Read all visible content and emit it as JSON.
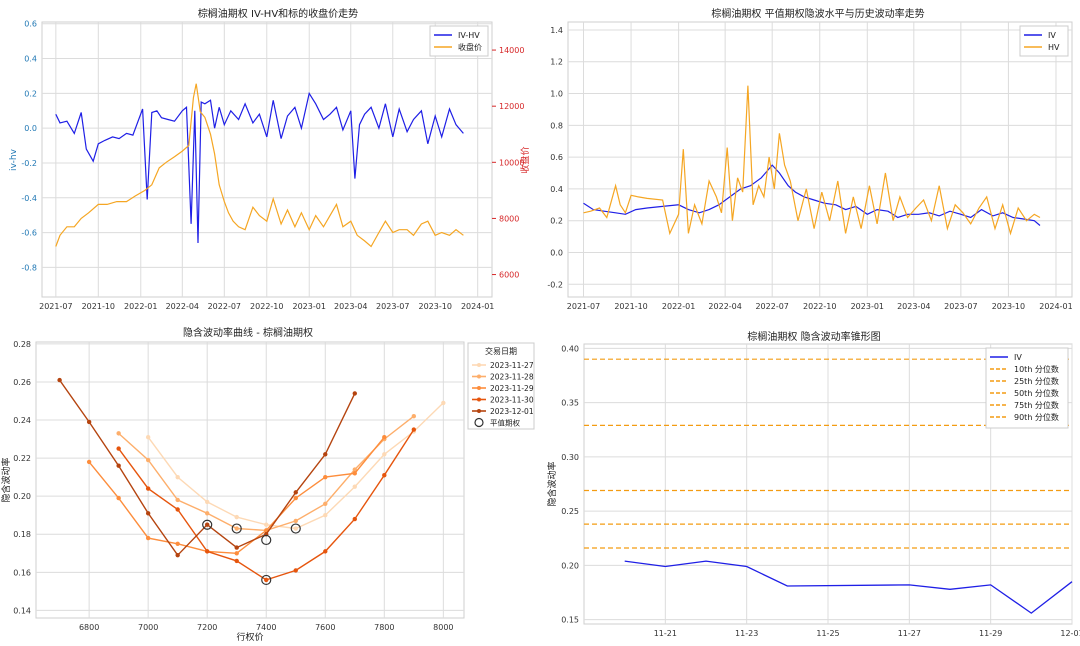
{
  "colors": {
    "iv_blue": "#1f1fe6",
    "hv_orange": "#f5a623",
    "close_orange": "#f5a623",
    "right_axis_red": "#d62728",
    "left_axis_blue": "#1f77b4",
    "quantile_orange": "#f39c12",
    "grid": "#d9d9d9",
    "smile_palette": [
      "#fdd9b5",
      "#fdae6b",
      "#fd8d3c",
      "#e6550d",
      "#b5440f"
    ]
  },
  "chart_data": [
    {
      "type": "line",
      "title": "棕榈油期权 IV-HV和标的收盘价走势",
      "ylabel": "iv-hv",
      "y2label": "收盘价",
      "ylim": [
        -0.97,
        0.61
      ],
      "y2lim": [
        5200,
        15000
      ],
      "xlim": [
        "2021-06-01",
        "2024-02-01"
      ],
      "yticks": [
        -0.8,
        -0.6,
        -0.4,
        -0.2,
        0.0,
        0.2,
        0.4,
        0.6
      ],
      "ytick_labels": [
        "-0.8",
        "-0.6",
        "-0.4",
        "-0.2",
        "0.0",
        "0.2",
        "0.4",
        "0.6"
      ],
      "y2ticks": [
        6000,
        8000,
        10000,
        12000,
        14000
      ],
      "y2tick_labels": [
        "6000",
        "8000",
        "10000",
        "12000",
        "14000"
      ],
      "xticks": [
        "2021-07-01",
        "2021-10-01",
        "2022-01-01",
        "2022-04-01",
        "2022-07-01",
        "2022-10-01",
        "2023-01-01",
        "2023-04-01",
        "2023-07-01",
        "2023-10-01",
        "2024-01-01"
      ],
      "xtick_labels": [
        "2021-07",
        "2021-10",
        "2022-01",
        "2022-04",
        "2022-07",
        "2022-10",
        "2023-01",
        "2023-04",
        "2023-07",
        "2023-10",
        "2024-01"
      ],
      "grid": true,
      "legend_position": "top-right",
      "series": [
        {
          "name": "IV-HV",
          "axis": "left",
          "color": "#1f1fe6",
          "x": [
            "2021-07-01",
            "2021-07-10",
            "2021-07-25",
            "2021-08-10",
            "2021-08-25",
            "2021-09-05",
            "2021-09-20",
            "2021-10-01",
            "2021-10-15",
            "2021-11-01",
            "2021-11-15",
            "2021-12-01",
            "2021-12-15",
            "2022-01-05",
            "2022-01-15",
            "2022-01-25",
            "2022-02-05",
            "2022-02-15",
            "2022-03-01",
            "2022-03-15",
            "2022-04-01",
            "2022-04-10",
            "2022-04-20",
            "2022-04-28",
            "2022-05-05",
            "2022-05-12",
            "2022-05-20",
            "2022-06-01",
            "2022-06-10",
            "2022-06-20",
            "2022-07-01",
            "2022-07-15",
            "2022-08-01",
            "2022-08-15",
            "2022-09-01",
            "2022-09-15",
            "2022-10-01",
            "2022-10-15",
            "2022-11-01",
            "2022-11-15",
            "2022-12-01",
            "2022-12-15",
            "2023-01-01",
            "2023-01-15",
            "2023-02-01",
            "2023-02-15",
            "2023-03-01",
            "2023-03-15",
            "2023-04-01",
            "2023-04-10",
            "2023-04-20",
            "2023-05-01",
            "2023-05-15",
            "2023-06-01",
            "2023-06-15",
            "2023-07-01",
            "2023-07-15",
            "2023-08-01",
            "2023-08-15",
            "2023-09-01",
            "2023-09-15",
            "2023-10-01",
            "2023-10-15",
            "2023-11-01",
            "2023-11-15",
            "2023-12-01"
          ],
          "y": [
            0.08,
            0.03,
            0.04,
            -0.03,
            0.09,
            -0.12,
            -0.19,
            -0.09,
            -0.07,
            -0.05,
            -0.06,
            -0.03,
            -0.04,
            0.11,
            -0.41,
            0.09,
            0.1,
            0.06,
            0.05,
            0.04,
            0.1,
            0.12,
            -0.55,
            0.1,
            -0.66,
            0.15,
            0.14,
            0.16,
            0.0,
            0.12,
            0.02,
            0.1,
            0.05,
            0.14,
            0.03,
            0.08,
            -0.05,
            0.16,
            -0.06,
            0.07,
            0.12,
            0.0,
            0.2,
            0.14,
            0.05,
            0.08,
            0.12,
            -0.01,
            0.1,
            -0.29,
            0.02,
            0.08,
            0.12,
            0.0,
            0.14,
            -0.05,
            0.11,
            -0.02,
            0.05,
            0.1,
            -0.09,
            0.07,
            -0.05,
            0.11,
            0.02,
            -0.03
          ]
        },
        {
          "name": "收盘价",
          "axis": "right",
          "color": "#f5a623",
          "x": [
            "2021-07-01",
            "2021-07-10",
            "2021-07-25",
            "2021-08-10",
            "2021-08-25",
            "2021-09-10",
            "2021-10-01",
            "2021-10-20",
            "2021-11-10",
            "2021-12-01",
            "2021-12-20",
            "2022-01-10",
            "2022-01-25",
            "2022-02-10",
            "2022-02-25",
            "2022-03-15",
            "2022-04-01",
            "2022-04-15",
            "2022-04-25",
            "2022-05-01",
            "2022-05-10",
            "2022-05-20",
            "2022-06-01",
            "2022-06-10",
            "2022-06-20",
            "2022-07-01",
            "2022-07-10",
            "2022-07-20",
            "2022-08-01",
            "2022-08-15",
            "2022-09-01",
            "2022-09-15",
            "2022-10-01",
            "2022-10-15",
            "2022-11-01",
            "2022-11-15",
            "2022-12-01",
            "2022-12-15",
            "2023-01-01",
            "2023-01-15",
            "2023-02-01",
            "2023-02-15",
            "2023-03-01",
            "2023-03-15",
            "2023-04-01",
            "2023-04-15",
            "2023-05-01",
            "2023-05-15",
            "2023-06-01",
            "2023-06-15",
            "2023-07-01",
            "2023-07-15",
            "2023-08-01",
            "2023-08-15",
            "2023-09-01",
            "2023-09-15",
            "2023-10-01",
            "2023-10-15",
            "2023-11-01",
            "2023-11-15",
            "2023-12-01"
          ],
          "y": [
            7000,
            7400,
            7700,
            7700,
            8000,
            8200,
            8500,
            8500,
            8600,
            8600,
            8800,
            9000,
            9200,
            9800,
            10000,
            10200,
            10400,
            10600,
            12300,
            12800,
            11800,
            11600,
            11000,
            10300,
            9200,
            8600,
            8200,
            7900,
            7700,
            7600,
            8400,
            8100,
            7900,
            8700,
            7800,
            8300,
            7700,
            8200,
            7600,
            8100,
            7700,
            8100,
            8500,
            7700,
            7900,
            7400,
            7200,
            7000,
            7500,
            7900,
            7500,
            7600,
            7600,
            7400,
            7800,
            7900,
            7400,
            7500,
            7400,
            7600,
            7400
          ]
        }
      ]
    },
    {
      "type": "line",
      "title": "棕榈油期权 平值期权隐波水平与历史波动率走势",
      "ylim": [
        -0.28,
        1.45
      ],
      "xlim": [
        "2021-06-01",
        "2024-02-01"
      ],
      "yticks": [
        -0.2,
        0.0,
        0.2,
        0.4,
        0.6,
        0.8,
        1.0,
        1.2,
        1.4
      ],
      "ytick_labels": [
        "-0.2",
        "0.0",
        "0.2",
        "0.4",
        "0.6",
        "0.8",
        "1.0",
        "1.2",
        "1.4"
      ],
      "xticks": [
        "2021-07-01",
        "2021-10-01",
        "2022-01-01",
        "2022-04-01",
        "2022-07-01",
        "2022-10-01",
        "2023-01-01",
        "2023-04-01",
        "2023-07-01",
        "2023-10-01",
        "2024-01-01"
      ],
      "xtick_labels": [
        "2021-07",
        "2021-10",
        "2022-01",
        "2022-04",
        "2022-07",
        "2022-10",
        "2023-01",
        "2023-04",
        "2023-07",
        "2023-10",
        "2024-01"
      ],
      "grid": true,
      "legend_position": "top-right",
      "series": [
        {
          "name": "IV",
          "color": "#1f1fe6",
          "x": [
            "2021-07-01",
            "2021-07-20",
            "2021-08-10",
            "2021-09-01",
            "2021-09-20",
            "2021-10-10",
            "2021-11-01",
            "2021-12-01",
            "2022-01-01",
            "2022-01-20",
            "2022-02-10",
            "2022-03-01",
            "2022-03-20",
            "2022-04-10",
            "2022-05-01",
            "2022-05-20",
            "2022-06-10",
            "2022-07-01",
            "2022-07-15",
            "2022-08-01",
            "2022-08-15",
            "2022-09-01",
            "2022-09-20",
            "2022-10-10",
            "2022-11-01",
            "2022-11-20",
            "2022-12-10",
            "2023-01-01",
            "2023-01-20",
            "2023-02-10",
            "2023-03-01",
            "2023-03-20",
            "2023-04-10",
            "2023-05-01",
            "2023-05-20",
            "2023-06-10",
            "2023-07-01",
            "2023-07-20",
            "2023-08-10",
            "2023-09-01",
            "2023-09-20",
            "2023-10-10",
            "2023-11-01",
            "2023-11-20",
            "2023-12-01"
          ],
          "y": [
            0.31,
            0.27,
            0.26,
            0.25,
            0.24,
            0.27,
            0.28,
            0.29,
            0.3,
            0.27,
            0.25,
            0.27,
            0.3,
            0.35,
            0.4,
            0.42,
            0.47,
            0.55,
            0.5,
            0.42,
            0.38,
            0.35,
            0.33,
            0.31,
            0.3,
            0.27,
            0.29,
            0.24,
            0.27,
            0.26,
            0.22,
            0.24,
            0.24,
            0.25,
            0.23,
            0.26,
            0.24,
            0.22,
            0.27,
            0.23,
            0.25,
            0.22,
            0.21,
            0.2,
            0.17
          ]
        },
        {
          "name": "HV",
          "color": "#f5a623",
          "x": [
            "2021-07-01",
            "2021-07-15",
            "2021-08-01",
            "2021-08-15",
            "2021-09-01",
            "2021-09-10",
            "2021-09-20",
            "2021-10-01",
            "2021-10-15",
            "2021-11-01",
            "2021-12-01",
            "2021-12-15",
            "2022-01-01",
            "2022-01-10",
            "2022-01-20",
            "2022-02-01",
            "2022-02-15",
            "2022-03-01",
            "2022-03-15",
            "2022-03-25",
            "2022-04-05",
            "2022-04-15",
            "2022-04-25",
            "2022-05-05",
            "2022-05-15",
            "2022-05-25",
            "2022-06-05",
            "2022-06-15",
            "2022-06-25",
            "2022-07-05",
            "2022-07-15",
            "2022-07-25",
            "2022-08-05",
            "2022-08-20",
            "2022-09-05",
            "2022-09-20",
            "2022-10-05",
            "2022-10-20",
            "2022-11-05",
            "2022-11-20",
            "2022-12-05",
            "2022-12-20",
            "2023-01-05",
            "2023-01-20",
            "2023-02-05",
            "2023-02-20",
            "2023-03-05",
            "2023-03-20",
            "2023-04-05",
            "2023-04-20",
            "2023-05-05",
            "2023-05-20",
            "2023-06-05",
            "2023-06-20",
            "2023-07-05",
            "2023-07-20",
            "2023-08-05",
            "2023-08-20",
            "2023-09-05",
            "2023-09-20",
            "2023-10-05",
            "2023-10-20",
            "2023-11-05",
            "2023-11-20",
            "2023-12-01"
          ],
          "y": [
            0.25,
            0.26,
            0.28,
            0.22,
            0.42,
            0.3,
            0.25,
            0.36,
            0.35,
            0.34,
            0.33,
            0.12,
            0.24,
            0.65,
            0.12,
            0.3,
            0.18,
            0.45,
            0.35,
            0.25,
            0.66,
            0.2,
            0.47,
            0.38,
            1.05,
            0.3,
            0.42,
            0.35,
            0.6,
            0.4,
            0.75,
            0.55,
            0.45,
            0.2,
            0.4,
            0.15,
            0.38,
            0.2,
            0.45,
            0.12,
            0.35,
            0.15,
            0.42,
            0.18,
            0.5,
            0.2,
            0.35,
            0.22,
            0.28,
            0.33,
            0.2,
            0.42,
            0.15,
            0.3,
            0.25,
            0.18,
            0.28,
            0.35,
            0.15,
            0.3,
            0.12,
            0.28,
            0.2,
            0.24,
            0.22
          ]
        }
      ]
    },
    {
      "type": "line",
      "title": "隐含波动率曲线 - 棕榈油期权",
      "xlabel": "行权价",
      "ylabel": "隐含波动率",
      "xlim": [
        6620,
        8070
      ],
      "ylim": [
        0.136,
        0.281
      ],
      "xticks": [
        6800,
        7000,
        7200,
        7400,
        7600,
        7800,
        8000
      ],
      "xtick_labels": [
        "6800",
        "7000",
        "7200",
        "7400",
        "7600",
        "7800",
        "8000"
      ],
      "yticks": [
        0.14,
        0.16,
        0.18,
        0.2,
        0.22,
        0.24,
        0.26,
        0.28
      ],
      "ytick_labels": [
        "0.14",
        "0.16",
        "0.18",
        "0.20",
        "0.22",
        "0.24",
        "0.26",
        "0.28"
      ],
      "grid": true,
      "legend_title": "交易日期",
      "legend_position": "outside-right",
      "series": [
        {
          "name": "2023-11-27",
          "color": "#fdd9b5",
          "x": [
            7000,
            7100,
            7200,
            7300,
            7400,
            7500,
            7600,
            7700,
            7800,
            7900,
            8000
          ],
          "y": [
            0.231,
            0.21,
            0.197,
            0.189,
            0.185,
            0.183,
            0.19,
            0.205,
            0.222,
            0.234,
            0.249
          ]
        },
        {
          "name": "2023-11-28",
          "color": "#fdae6b",
          "x": [
            6900,
            7000,
            7100,
            7200,
            7300,
            7400,
            7500,
            7600,
            7700,
            7800,
            7900
          ],
          "y": [
            0.233,
            0.219,
            0.198,
            0.191,
            0.183,
            0.182,
            0.187,
            0.196,
            0.214,
            0.23,
            0.242
          ]
        },
        {
          "name": "2023-11-29",
          "color": "#fd8d3c",
          "x": [
            6800,
            6900,
            7000,
            7100,
            7200,
            7300,
            7400,
            7500,
            7600,
            7700,
            7800
          ],
          "y": [
            0.218,
            0.199,
            0.178,
            0.175,
            0.171,
            0.17,
            0.182,
            0.199,
            0.21,
            0.212,
            0.231
          ]
        },
        {
          "name": "2023-11-30",
          "color": "#e6550d",
          "x": [
            6900,
            7000,
            7100,
            7200,
            7300,
            7400,
            7500,
            7600,
            7700,
            7800,
            7900
          ],
          "y": [
            0.225,
            0.204,
            0.193,
            0.171,
            0.166,
            0.156,
            0.161,
            0.171,
            0.188,
            0.211,
            0.235
          ]
        },
        {
          "name": "2023-12-01",
          "color": "#b5440f",
          "x": [
            6700,
            6800,
            6900,
            7000,
            7100,
            7200,
            7300,
            7400,
            7500,
            7600,
            7700
          ],
          "y": [
            0.261,
            0.239,
            0.216,
            0.191,
            0.169,
            0.185,
            0.173,
            0.18,
            0.202,
            0.222,
            0.254
          ]
        }
      ],
      "atm_points": {
        "name": "平值期权",
        "x": [
          7200,
          7300,
          7400,
          7400,
          7500
        ],
        "y": [
          0.185,
          0.183,
          0.177,
          0.156,
          0.183
        ]
      }
    },
    {
      "type": "line",
      "title": "棕榈油期权 隐含波动率锥形图",
      "ylabel": "隐含波动率",
      "xlim": [
        "2023-11-19",
        "2023-12-01"
      ],
      "ylim": [
        0.146,
        0.404
      ],
      "yticks": [
        0.15,
        0.2,
        0.25,
        0.3,
        0.35,
        0.4
      ],
      "ytick_labels": [
        "0.15",
        "0.20",
        "0.25",
        "0.30",
        "0.35",
        "0.40"
      ],
      "xticks": [
        "2023-11-21",
        "2023-11-23",
        "2023-11-25",
        "2023-11-27",
        "2023-11-29",
        "2023-12-01"
      ],
      "xtick_labels": [
        "11-21",
        "11-23",
        "11-25",
        "11-27",
        "11-29",
        "12-01"
      ],
      "grid": true,
      "legend_position": "top-right",
      "series": [
        {
          "name": "IV",
          "color": "#1f1fe6",
          "x": [
            "2023-11-20",
            "2023-11-21",
            "2023-11-22",
            "2023-11-23",
            "2023-11-24",
            "2023-11-27",
            "2023-11-28",
            "2023-11-29",
            "2023-11-30",
            "2023-12-01"
          ],
          "y": [
            0.204,
            0.199,
            0.204,
            0.199,
            0.181,
            0.182,
            0.178,
            0.182,
            0.156,
            0.185
          ]
        }
      ],
      "quantiles": [
        {
          "name": "10th 分位数",
          "value": 0.216
        },
        {
          "name": "25th 分位数",
          "value": 0.238
        },
        {
          "name": "50th 分位数",
          "value": 0.269
        },
        {
          "name": "75th 分位数",
          "value": 0.329
        },
        {
          "name": "90th 分位数",
          "value": 0.39
        }
      ]
    }
  ]
}
